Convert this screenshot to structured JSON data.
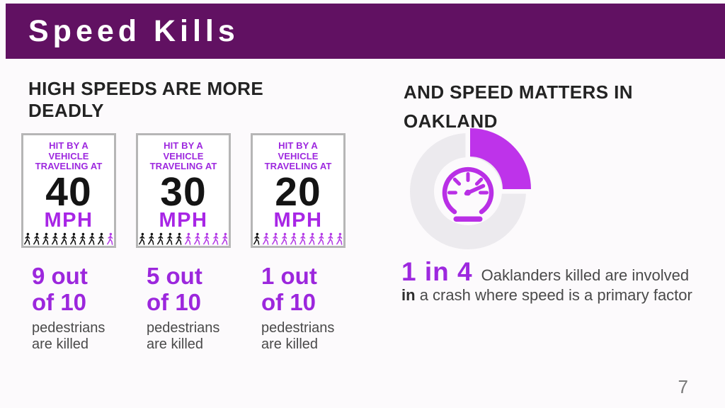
{
  "slide": {
    "title": "Speed Kills",
    "page_number": "7",
    "colors": {
      "header_bg": "#611162",
      "accent_purple": "#9D28DF",
      "accent_magenta": "#A826E6",
      "donut_arc": "#BE33EA",
      "ring_gray": "#ECEAEE",
      "icon_black": "#141414",
      "icon_purple": "#B43CE6",
      "heading_text": "#232323",
      "body_gray": "#4A4A4A",
      "card_border": "#B6B6B6",
      "page_number_gray": "#7A7A7A"
    }
  },
  "left_section": {
    "heading_line1": "HIGH SPEEDS ARE MORE",
    "heading_line2": "DEADLY",
    "cards": [
      {
        "label_line1": "HIT BY A",
        "label_line2": "VEHICLE",
        "label_line3": "TRAVELING AT",
        "speed": "40",
        "unit": "MPH",
        "killed": 9,
        "total": 10,
        "stat_line1": "9 out",
        "stat_line2": "of 10",
        "caption_line1": "pedestrians",
        "caption_line2": "are killed"
      },
      {
        "label_line1": "HIT BY A",
        "label_line2": "VEHICLE",
        "label_line3": "TRAVELING AT",
        "speed": "30",
        "unit": "MPH",
        "killed": 5,
        "total": 10,
        "stat_line1": "5 out",
        "stat_line2": "of 10",
        "caption_line1": "pedestrians",
        "caption_line2": "are killed"
      },
      {
        "label_line1": "HIT BY A",
        "label_line2": "VEHICLE",
        "label_line3": "TRAVELING AT",
        "speed": "20",
        "unit": "MPH",
        "killed": 1,
        "total": 10,
        "stat_line1": "1 out",
        "stat_line2": "of 10",
        "caption_line1": "pedestrians",
        "caption_line2": "are killed"
      }
    ]
  },
  "right_section": {
    "heading_line1": "AND SPEED MATTERS IN",
    "heading_line2": "OAKLAND",
    "donut": {
      "percent": 25,
      "icon": "speedometer-icon"
    },
    "callout": {
      "stat": "1 in 4",
      "text_line1": "Oaklanders killed are involved",
      "bold_word": "in",
      "text_line2": "a crash where speed is a primary factor"
    }
  },
  "chart_data": [
    {
      "type": "bar",
      "subtype": "pictograph",
      "title": "HIGH SPEEDS ARE MORE DEADLY",
      "categories": [
        "40 MPH",
        "30 MPH",
        "20 MPH"
      ],
      "series": [
        {
          "name": "pedestrians killed (black figures)",
          "values": [
            9,
            5,
            1
          ]
        },
        {
          "name": "pedestrians surviving (purple figures)",
          "values": [
            1,
            5,
            9
          ]
        }
      ],
      "units_per_category": 10,
      "annotations": [
        "9 out of 10 pedestrians are killed",
        "5 out of 10 pedestrians are killed",
        "1 out of 10 pedestrians are killed"
      ]
    },
    {
      "type": "pie",
      "subtype": "donut",
      "title": "AND SPEED MATTERS IN OAKLAND",
      "values": [
        25,
        75
      ],
      "labels": [
        "speed is a primary factor",
        "other"
      ],
      "label": "1 in 4",
      "annotation": "1 in 4 Oaklanders killed are involved in a crash where speed is a primary factor",
      "center_icon": "speedometer"
    }
  ]
}
